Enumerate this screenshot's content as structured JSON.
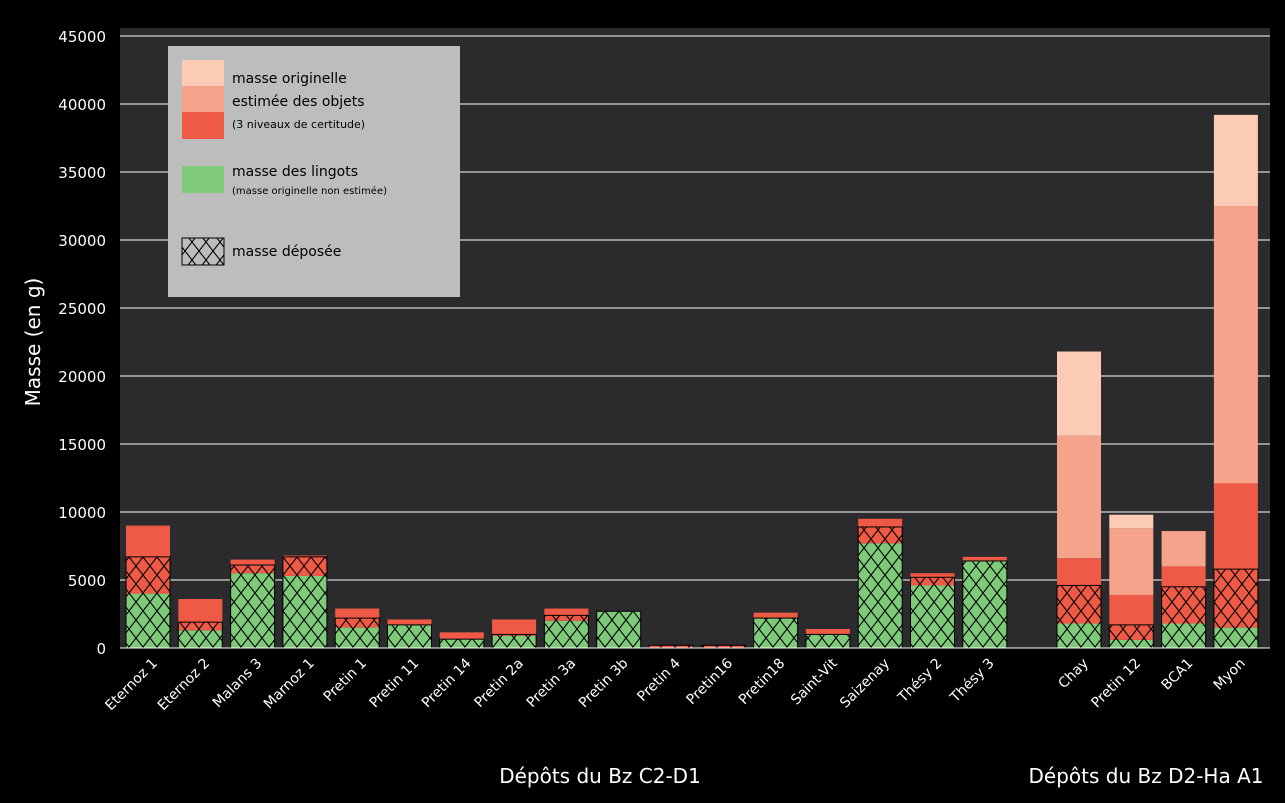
{
  "colors": {
    "background": "#000000",
    "plot_area": "#2b2b2d",
    "gridline": "#ffffff",
    "text": "#ffffff",
    "legend_box": "#bdbdbd",
    "light": "#fccbb3",
    "medium": "#f6a38b",
    "dark": "#ef5a46",
    "ingot": "#7fc97a",
    "hatch_line": "#000000"
  },
  "chart_data": {
    "type": "bar",
    "stacked": true,
    "ylabel": "Masse (en g)",
    "ylim": [
      0,
      45000
    ],
    "yticks": [
      0,
      5000,
      10000,
      15000,
      20000,
      25000,
      30000,
      35000,
      40000,
      45000
    ],
    "grid": true,
    "legend_position": "top-left",
    "groups": [
      {
        "label": "Dépôts du Bz C2-D1",
        "categories": [
          "Eternoz 1",
          "Eternoz 2",
          "Malans 3",
          "Marnoz 1",
          "Pretin 1",
          "Pretin 11",
          "Pretin 14",
          "Pretin 2a",
          "Pretin 3a",
          "Pretin 3b",
          "Pretin 4",
          "Pretin16",
          "Pretin18",
          "Saint-Vit",
          "Saizenay",
          "Thésy 2",
          "Thésy 3"
        ]
      },
      {
        "label": "Dépôts du Bz D2-Ha A1",
        "categories": [
          "Chay",
          "Pretin 12",
          "BCA1",
          "Myon"
        ]
      }
    ],
    "series": [
      {
        "name": "masse des lingots",
        "key": "ingot",
        "values": [
          4000,
          1300,
          5500,
          5300,
          1500,
          1700,
          650,
          900,
          2000,
          2700,
          0,
          0,
          2200,
          1000,
          7700,
          4600,
          6400,
          1800,
          600,
          1800,
          1500
        ]
      },
      {
        "name": "masse originelle estimée des objets (3 niveaux de certitude)",
        "key": "dark",
        "values": [
          5000,
          2300,
          1000,
          1500,
          1400,
          400,
          500,
          1200,
          900,
          0,
          200,
          200,
          400,
          400,
          1800,
          900,
          300,
          4800,
          3300,
          4200,
          10600
        ]
      },
      {
        "name": "",
        "key": "medium",
        "values": [
          0,
          0,
          0,
          0,
          0,
          0,
          0,
          0,
          0,
          0,
          0,
          0,
          0,
          0,
          0,
          0,
          0,
          9000,
          4900,
          2600,
          20400
        ]
      },
      {
        "name": "",
        "key": "light",
        "values": [
          0,
          0,
          0,
          0,
          0,
          0,
          0,
          0,
          0,
          0,
          0,
          0,
          0,
          0,
          0,
          0,
          0,
          6200,
          1000,
          0,
          6700
        ]
      }
    ],
    "deposited_mass": [
      6700,
      1900,
      6100,
      6700,
      2200,
      1700,
      650,
      1000,
      2400,
      2700,
      200,
      200,
      2200,
      1000,
      8900,
      5200,
      6400,
      4600,
      1700,
      4500,
      5800
    ],
    "legend": [
      {
        "key": "light",
        "line": "masse originelle",
        "size": "normal"
      },
      {
        "key": "medium",
        "line": "estimée des objets",
        "size": "normal"
      },
      {
        "key": "dark",
        "line": "(3 niveaux de certitude)",
        "size": "small"
      },
      {
        "key": "ingot",
        "line": "masse des lingots",
        "size": "normal",
        "sub": "(masse originelle non estimée)"
      },
      {
        "key": "hatch",
        "line": "masse déposée",
        "size": "normal"
      }
    ]
  }
}
